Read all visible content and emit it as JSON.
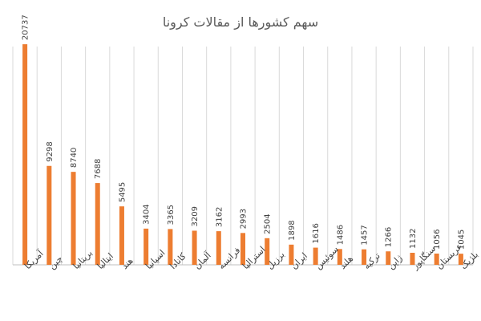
{
  "chart_data": {
    "type": "bar",
    "title": "سهم کشورها از مقالات کرونا",
    "xlabel": "",
    "ylabel": "",
    "ylim": [
      0,
      21500
    ],
    "categories": [
      "آمریکا",
      "چین",
      "بریتانیا",
      "ایتالیا",
      "هند",
      "اسپانیا",
      "کانادا",
      "آلمان",
      "فرانسه",
      "استرالیا",
      "برزیل",
      "ایران",
      "سوئیس",
      "هلند",
      "ترکیه",
      "ژاپن",
      "سنگاپور",
      "عربستان",
      "بلژیک"
    ],
    "series": [
      {
        "values": [
          20737,
          9298,
          8740,
          7688,
          5495,
          3404,
          3365,
          3209,
          3162,
          2993,
          2504,
          1898,
          1616,
          1486,
          1457,
          1266,
          1132,
          1056,
          1045
        ],
        "color": "#ed7d31"
      }
    ],
    "grid": "vertical-category-lines",
    "legend": "none",
    "value_labels": "rotated-vertical-above-bars"
  }
}
